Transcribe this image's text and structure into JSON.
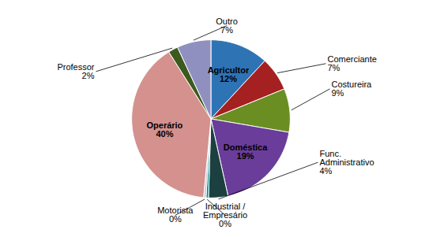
{
  "chart_data": {
    "type": "pie",
    "categories": [
      "Agricultor",
      "Comerciante",
      "Costureira",
      "Doméstica",
      "Func.\nAdministrativo",
      "Industrial /\nEmpresário",
      "Motorista",
      "Operário",
      "Professor",
      "Outro"
    ],
    "values": [
      12,
      7,
      9,
      19,
      4,
      0.5,
      0.5,
      40,
      2,
      7
    ],
    "value_labels": [
      "12%",
      "7%",
      "9%",
      "19%",
      "4%",
      "0%",
      "0%",
      "40%",
      "2%",
      "7%"
    ],
    "colors": [
      "#2E74B5",
      "#A52020",
      "#6B8E23",
      "#6A3D9A",
      "#1C4040",
      "#008B8B",
      "#C8C8D8",
      "#D4918E",
      "#3D5A1E",
      "#9090C0"
    ],
    "data_labels": true
  }
}
